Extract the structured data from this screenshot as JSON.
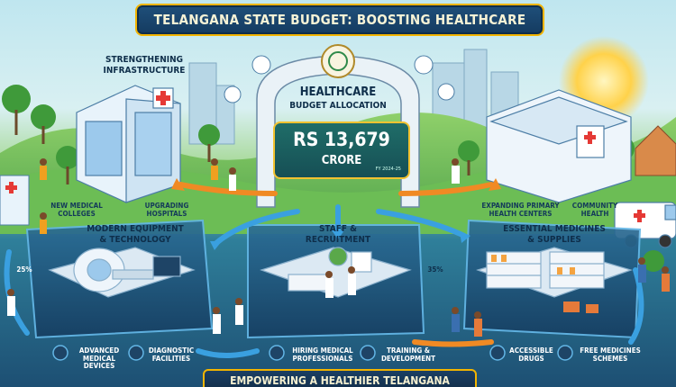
{
  "title": "TELANGANA STATE BUDGET: BOOSTING HEALTHCARE",
  "center": {
    "heading_line1": "HEALTHCARE",
    "heading_line2": "BUDGET ALLOCATION",
    "amount": "RS 13,679",
    "unit": "CRORE",
    "fiscal_year": "FY 2024-25"
  },
  "sections": {
    "infrastructure": {
      "title_line1": "STRENGTHENING",
      "title_line2": "INFRASTRUCTURE",
      "item1_line1": "NEW MEDICAL",
      "item1_line2": "COLLEGES",
      "item2_line1": "UPGRADING",
      "item2_line2": "HOSPITALS"
    },
    "primary_health": {
      "item1_line1": "EXPANDING PRIMARY",
      "item1_line2": "HEALTH CENTERS",
      "item2_line1": "COMMUNITY",
      "item2_line2": "HEALTH"
    },
    "equipment": {
      "title_line1": "MODERN EQUIPMENT",
      "title_line2": "& TECHNOLOGY",
      "item1_line1": "ADVANCED",
      "item1_line2": "MEDICAL DEVICES",
      "item2_line1": "DIAGNOSTIC",
      "item2_line2": "FACILITIES",
      "percent": "25%"
    },
    "staff": {
      "title_line1": "STAFF &",
      "title_line2": "RECRUITMENT",
      "item1_line1": "HIRING MEDICAL",
      "item1_line2": "PROFESSIONALS",
      "item2_line1": "TRAINING &",
      "item2_line2": "DEVELOPMENT",
      "percent": "35%"
    },
    "medicines": {
      "title_line1": "ESSENTIAL MEDICINES",
      "title_line2": "& SUPPLIES",
      "item1_line1": "ACCESSIBLE",
      "item1_line2": "DRUGS",
      "item2_line1": "FREE MEDICINES",
      "item2_line2": "SCHEMES"
    }
  },
  "footer": "EMPOWERING A HEALTHIER TELANGANA",
  "colors": {
    "navy": "#143b60",
    "gold": "#f2b400",
    "teal": "#1f6d68",
    "arrow_orange": "#f08a24",
    "arrow_blue": "#3aa0e0"
  }
}
